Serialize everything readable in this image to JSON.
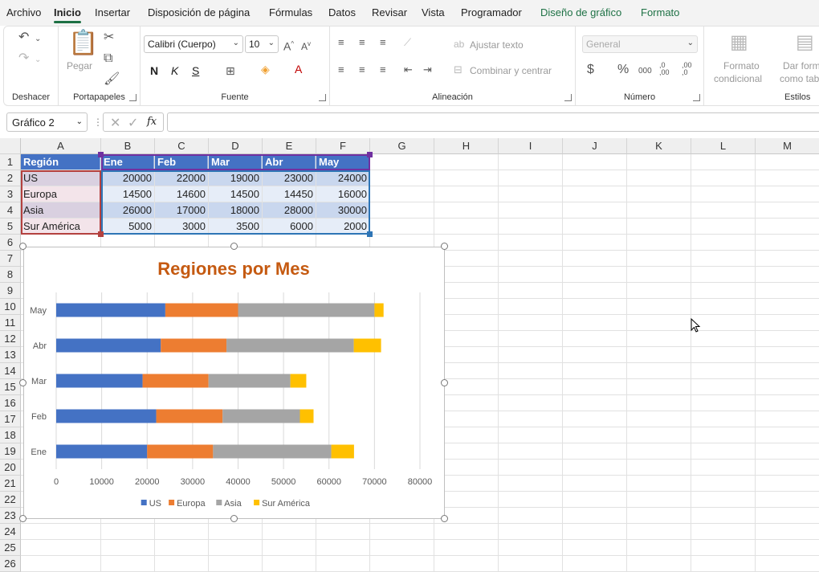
{
  "tabs": [
    {
      "label": "Archivo",
      "active": false,
      "green": false
    },
    {
      "label": "Inicio",
      "active": true,
      "green": false
    },
    {
      "label": "Insertar",
      "active": false,
      "green": false
    },
    {
      "label": "Disposición de página",
      "active": false,
      "green": false
    },
    {
      "label": "Fórmulas",
      "active": false,
      "green": false
    },
    {
      "label": "Datos",
      "active": false,
      "green": false
    },
    {
      "label": "Revisar",
      "active": false,
      "green": false
    },
    {
      "label": "Vista",
      "active": false,
      "green": false
    },
    {
      "label": "Programador",
      "active": false,
      "green": false
    },
    {
      "label": "Diseño de gráfico",
      "active": false,
      "green": true
    },
    {
      "label": "Formato",
      "active": false,
      "green": true
    }
  ],
  "ribbon": {
    "undo_group": "Deshacer",
    "clipboard": {
      "group": "Portapapeles",
      "paste": "Pegar"
    },
    "font": {
      "group": "Fuente",
      "name": "Calibri (Cuerpo)",
      "size": "10",
      "bold": "N",
      "italic": "K",
      "underline": "S"
    },
    "align": {
      "group": "Alineación",
      "wrap": "Ajustar texto",
      "merge": "Combinar y centrar"
    },
    "number": {
      "group": "Número",
      "format": "General",
      "currency": "$",
      "percent": "%",
      "thousands": "000",
      "inc_dec": ",0\n,00",
      "dec_dec": ",00\n,0"
    },
    "styles": {
      "group": "Estilos",
      "cond_format_1": "Formato",
      "cond_format_2": "condicional",
      "table_format_1": "Dar forma",
      "table_format_2": "como tabl"
    }
  },
  "formula_bar": {
    "name_box": "Gráfico 2",
    "fx": "fx",
    "value": ""
  },
  "columns": [
    "A",
    "B",
    "C",
    "D",
    "E",
    "F",
    "G",
    "H",
    "I",
    "J",
    "K",
    "L",
    "M"
  ],
  "rows": [
    "1",
    "2",
    "3",
    "4",
    "5",
    "6",
    "7",
    "8",
    "9",
    "10",
    "11",
    "12",
    "13",
    "14",
    "15",
    "16",
    "17",
    "18",
    "19",
    "20",
    "21",
    "22",
    "23",
    "24",
    "25",
    "26"
  ],
  "table": {
    "header": [
      "Región",
      "Ene",
      "Feb",
      "Mar",
      "Abr",
      "May"
    ],
    "rows": [
      [
        "US",
        "20000",
        "22000",
        "19000",
        "23000",
        "24000"
      ],
      [
        "Europa",
        "14500",
        "14600",
        "14500",
        "14450",
        "16000"
      ],
      [
        "Asia",
        "26000",
        "17000",
        "18000",
        "28000",
        "30000"
      ],
      [
        "Sur América",
        "5000",
        "3000",
        "3500",
        "6000",
        "2000"
      ]
    ]
  },
  "chart_data": {
    "type": "bar",
    "stacked": true,
    "orientation": "horizontal",
    "title": "Regiones por Mes",
    "categories": [
      "Ene",
      "Feb",
      "Mar",
      "Abr",
      "May"
    ],
    "series": [
      {
        "name": "US",
        "color": "#4472c4",
        "values": [
          20000,
          22000,
          19000,
          23000,
          24000
        ]
      },
      {
        "name": "Europa",
        "color": "#ed7d31",
        "values": [
          14500,
          14600,
          14500,
          14450,
          16000
        ]
      },
      {
        "name": "Asia",
        "color": "#a5a5a5",
        "values": [
          26000,
          17000,
          18000,
          28000,
          30000
        ]
      },
      {
        "name": "Sur América",
        "color": "#ffc000",
        "values": [
          5000,
          3000,
          3500,
          6000,
          2000
        ]
      }
    ],
    "xlim": [
      0,
      80000
    ],
    "xticks": [
      "0",
      "10000",
      "20000",
      "30000",
      "40000",
      "50000",
      "60000",
      "70000",
      "80000"
    ],
    "grid": true,
    "legend": "bottom",
    "title_color": "#c55a11"
  }
}
